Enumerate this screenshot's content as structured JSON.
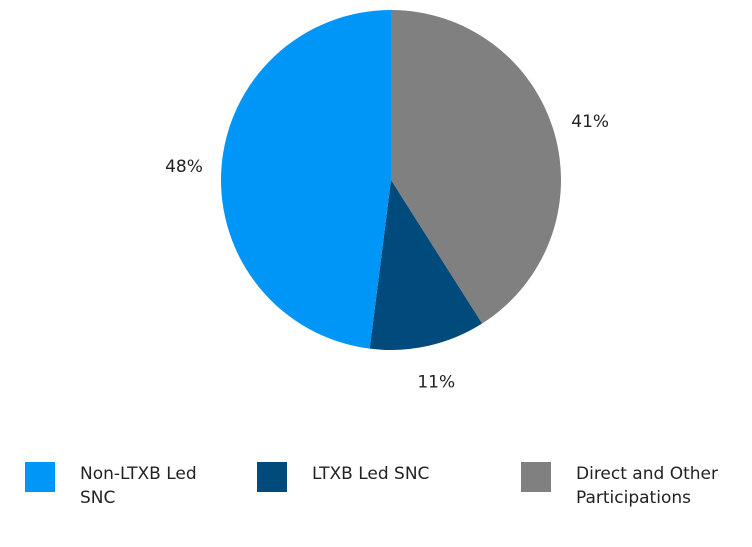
{
  "chart_data": {
    "type": "pie",
    "categories": [
      "Non-LTXB Led SNC",
      "LTXB Led SNC",
      "Direct and Other Participations"
    ],
    "values": [
      48,
      11,
      41
    ],
    "value_labels": [
      "48%",
      "11%",
      "41%"
    ],
    "colors": [
      "#0096f8",
      "#004a7c",
      "#808080"
    ],
    "legend": "bottom"
  }
}
